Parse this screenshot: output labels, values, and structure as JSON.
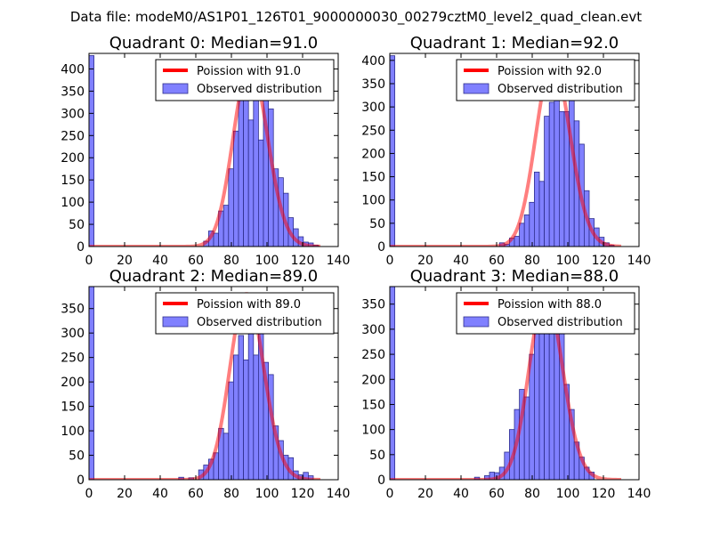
{
  "figure_title": "Data file: modeM0/AS1P01_126T01_9000000030_00279cztM0_level2_quad_clean.evt",
  "colors": {
    "bar_fill": "#8080ff",
    "bar_edge": "#2e2e8c",
    "curve": "#ff0000",
    "axes": "#000000"
  },
  "chart_data": [
    {
      "type": "bar",
      "title": "Quadrant 0: Median=91.0",
      "median": 91.0,
      "xlim": [
        0,
        140
      ],
      "ylim": [
        0,
        435
      ],
      "xticks": [
        0,
        20,
        40,
        60,
        80,
        100,
        120,
        140
      ],
      "yticks": [
        0,
        50,
        100,
        150,
        200,
        250,
        300,
        350,
        400
      ],
      "bin_width": 2.8,
      "bars": [
        {
          "x": 0,
          "h": 430
        },
        {
          "x": 64.4,
          "h": 12
        },
        {
          "x": 67.2,
          "h": 35
        },
        {
          "x": 70.0,
          "h": 30
        },
        {
          "x": 72.8,
          "h": 80
        },
        {
          "x": 75.6,
          "h": 93
        },
        {
          "x": 78.4,
          "h": 175
        },
        {
          "x": 81.2,
          "h": 260
        },
        {
          "x": 84.0,
          "h": 330
        },
        {
          "x": 86.8,
          "h": 340
        },
        {
          "x": 89.6,
          "h": 285
        },
        {
          "x": 92.4,
          "h": 415
        },
        {
          "x": 95.2,
          "h": 240
        },
        {
          "x": 98.0,
          "h": 350
        },
        {
          "x": 100.8,
          "h": 310
        },
        {
          "x": 103.6,
          "h": 175
        },
        {
          "x": 106.4,
          "h": 155
        },
        {
          "x": 109.2,
          "h": 120
        },
        {
          "x": 112.0,
          "h": 65
        },
        {
          "x": 114.8,
          "h": 40
        },
        {
          "x": 117.6,
          "h": 22
        },
        {
          "x": 120.4,
          "h": 10
        },
        {
          "x": 123.2,
          "h": 8
        },
        {
          "x": 126.0,
          "h": 3
        }
      ],
      "curve": {
        "mu": 91.0,
        "peak": 412,
        "x_start": 0,
        "x_end": 130
      },
      "legend": {
        "location": "upper right",
        "line_label": "Poission with 91.0",
        "bar_label": "Observed distribution"
      }
    },
    {
      "type": "bar",
      "title": "Quadrant 1: Median=92.0",
      "median": 92.0,
      "xlim": [
        0,
        140
      ],
      "ylim": [
        0,
        415
      ],
      "xticks": [
        0,
        20,
        40,
        60,
        80,
        100,
        120,
        140
      ],
      "yticks": [
        0,
        50,
        100,
        150,
        200,
        250,
        300,
        350,
        400
      ],
      "bin_width": 2.8,
      "bars": [
        {
          "x": 0,
          "h": 410
        },
        {
          "x": 61.6,
          "h": 8
        },
        {
          "x": 64.4,
          "h": 5
        },
        {
          "x": 67.2,
          "h": 18
        },
        {
          "x": 70.0,
          "h": 22
        },
        {
          "x": 72.8,
          "h": 50
        },
        {
          "x": 75.6,
          "h": 68
        },
        {
          "x": 78.4,
          "h": 95
        },
        {
          "x": 81.2,
          "h": 160
        },
        {
          "x": 84.0,
          "h": 140
        },
        {
          "x": 86.8,
          "h": 280
        },
        {
          "x": 89.6,
          "h": 310
        },
        {
          "x": 92.4,
          "h": 390
        },
        {
          "x": 95.2,
          "h": 290
        },
        {
          "x": 98.0,
          "h": 290
        },
        {
          "x": 100.8,
          "h": 355
        },
        {
          "x": 103.6,
          "h": 270
        },
        {
          "x": 106.4,
          "h": 220
        },
        {
          "x": 109.2,
          "h": 120
        },
        {
          "x": 112.0,
          "h": 60
        },
        {
          "x": 114.8,
          "h": 40
        },
        {
          "x": 117.6,
          "h": 20
        },
        {
          "x": 120.4,
          "h": 8
        },
        {
          "x": 123.2,
          "h": 3
        }
      ],
      "curve": {
        "mu": 92.0,
        "peak": 397,
        "x_start": 0,
        "x_end": 130
      },
      "legend": {
        "location": "upper right",
        "line_label": "Poission with 92.0",
        "bar_label": "Observed distribution"
      }
    },
    {
      "type": "bar",
      "title": "Quadrant 2: Median=89.0",
      "median": 89.0,
      "xlim": [
        0,
        140
      ],
      "ylim": [
        0,
        395
      ],
      "xticks": [
        0,
        20,
        40,
        60,
        80,
        100,
        120,
        140
      ],
      "yticks": [
        0,
        50,
        100,
        150,
        200,
        250,
        300,
        350
      ],
      "bin_width": 2.8,
      "bars": [
        {
          "x": 0,
          "h": 395
        },
        {
          "x": 50.4,
          "h": 5
        },
        {
          "x": 56.0,
          "h": 4
        },
        {
          "x": 61.6,
          "h": 20
        },
        {
          "x": 64.4,
          "h": 30
        },
        {
          "x": 67.2,
          "h": 42
        },
        {
          "x": 70.0,
          "h": 55
        },
        {
          "x": 72.8,
          "h": 105
        },
        {
          "x": 75.6,
          "h": 95
        },
        {
          "x": 78.4,
          "h": 200
        },
        {
          "x": 81.2,
          "h": 255
        },
        {
          "x": 84.0,
          "h": 295
        },
        {
          "x": 86.8,
          "h": 245
        },
        {
          "x": 89.6,
          "h": 350
        },
        {
          "x": 92.4,
          "h": 255
        },
        {
          "x": 95.2,
          "h": 300
        },
        {
          "x": 98.0,
          "h": 240
        },
        {
          "x": 100.8,
          "h": 215
        },
        {
          "x": 103.6,
          "h": 110
        },
        {
          "x": 106.4,
          "h": 80
        },
        {
          "x": 109.2,
          "h": 50
        },
        {
          "x": 112.0,
          "h": 45
        },
        {
          "x": 114.8,
          "h": 18
        },
        {
          "x": 117.6,
          "h": 10
        },
        {
          "x": 120.4,
          "h": 15
        },
        {
          "x": 123.2,
          "h": 8
        }
      ],
      "curve": {
        "mu": 89.0,
        "peak": 380,
        "x_start": 0,
        "x_end": 130
      },
      "legend": {
        "location": "upper right",
        "line_label": "Poission with 89.0",
        "bar_label": "Observed distribution"
      }
    },
    {
      "type": "bar",
      "title": "Quadrant 3: Median=88.0",
      "median": 88.0,
      "xlim": [
        0,
        140
      ],
      "ylim": [
        0,
        385
      ],
      "xticks": [
        0,
        20,
        40,
        60,
        80,
        100,
        120,
        140
      ],
      "yticks": [
        0,
        50,
        100,
        150,
        200,
        250,
        300,
        350
      ],
      "bin_width": 2.8,
      "bars": [
        {
          "x": 0,
          "h": 385
        },
        {
          "x": 47.6,
          "h": 5
        },
        {
          "x": 53.2,
          "h": 8
        },
        {
          "x": 56.0,
          "h": 15
        },
        {
          "x": 58.8,
          "h": 14
        },
        {
          "x": 61.6,
          "h": 25
        },
        {
          "x": 64.4,
          "h": 55
        },
        {
          "x": 67.2,
          "h": 100
        },
        {
          "x": 70.0,
          "h": 140
        },
        {
          "x": 72.8,
          "h": 180
        },
        {
          "x": 75.6,
          "h": 165
        },
        {
          "x": 78.4,
          "h": 250
        },
        {
          "x": 81.2,
          "h": 295
        },
        {
          "x": 84.0,
          "h": 345
        },
        {
          "x": 86.8,
          "h": 330
        },
        {
          "x": 89.6,
          "h": 300
        },
        {
          "x": 92.4,
          "h": 305
        },
        {
          "x": 95.2,
          "h": 335
        },
        {
          "x": 98.0,
          "h": 190
        },
        {
          "x": 100.8,
          "h": 140
        },
        {
          "x": 103.6,
          "h": 75
        },
        {
          "x": 106.4,
          "h": 45
        },
        {
          "x": 109.2,
          "h": 25
        },
        {
          "x": 112.0,
          "h": 15
        }
      ],
      "curve": {
        "mu": 88.0,
        "peak": 368,
        "x_start": 0,
        "x_end": 130
      },
      "legend": {
        "location": "upper right",
        "line_label": "Poission with 88.0",
        "bar_label": "Observed distribution"
      }
    }
  ]
}
